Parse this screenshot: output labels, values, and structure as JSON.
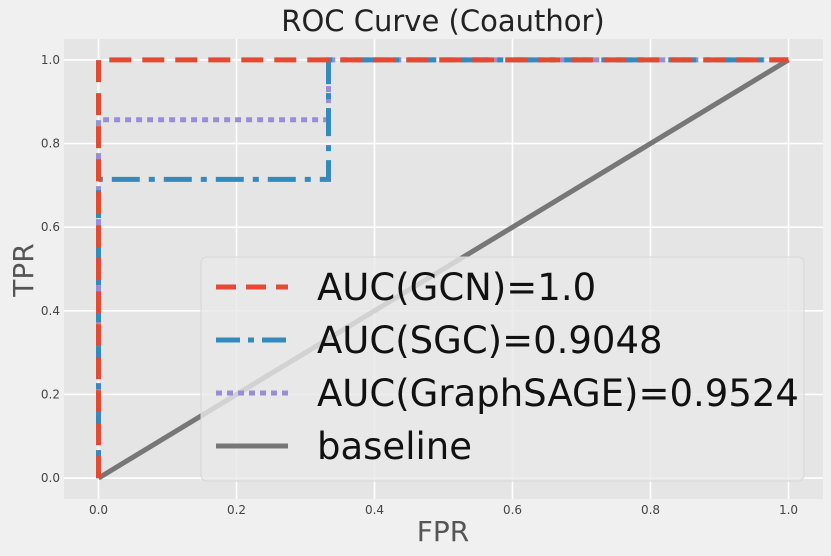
{
  "chart_data": {
    "type": "line",
    "title": "ROC Curve (Coauthor)",
    "xlabel": "FPR",
    "ylabel": "TPR",
    "xlim": [
      -0.05,
      1.05
    ],
    "ylim": [
      -0.05,
      1.05
    ],
    "xticks": [
      "0.0",
      "0.2",
      "0.4",
      "0.6",
      "0.8",
      "1.0"
    ],
    "yticks": [
      "0.0",
      "0.2",
      "0.4",
      "0.6",
      "0.8",
      "1.0"
    ],
    "grid": true,
    "legend_position": "lower-right",
    "series": [
      {
        "name": "AUC(GCN)=1.0",
        "style": "dashed",
        "color": "#e24a33",
        "x": [
          0.0,
          0.0,
          1.0
        ],
        "y": [
          0.0,
          1.0,
          1.0
        ]
      },
      {
        "name": "AUC(SGC)=0.9048",
        "style": "dashdot",
        "color": "#348abd",
        "x": [
          0.0,
          0.0,
          0.3333,
          0.3333,
          1.0
        ],
        "y": [
          0.0,
          0.7143,
          0.7143,
          1.0,
          1.0
        ]
      },
      {
        "name": "AUC(GraphSAGE)=0.9524",
        "style": "dotted",
        "color": "#988ed5",
        "x": [
          0.0,
          0.0,
          0.3333,
          0.3333,
          1.0
        ],
        "y": [
          0.0,
          0.8571,
          0.8571,
          1.0,
          1.0
        ]
      },
      {
        "name": "baseline",
        "style": "solid",
        "color": "#777777",
        "x": [
          0.0,
          1.0
        ],
        "y": [
          0.0,
          1.0
        ]
      }
    ]
  }
}
